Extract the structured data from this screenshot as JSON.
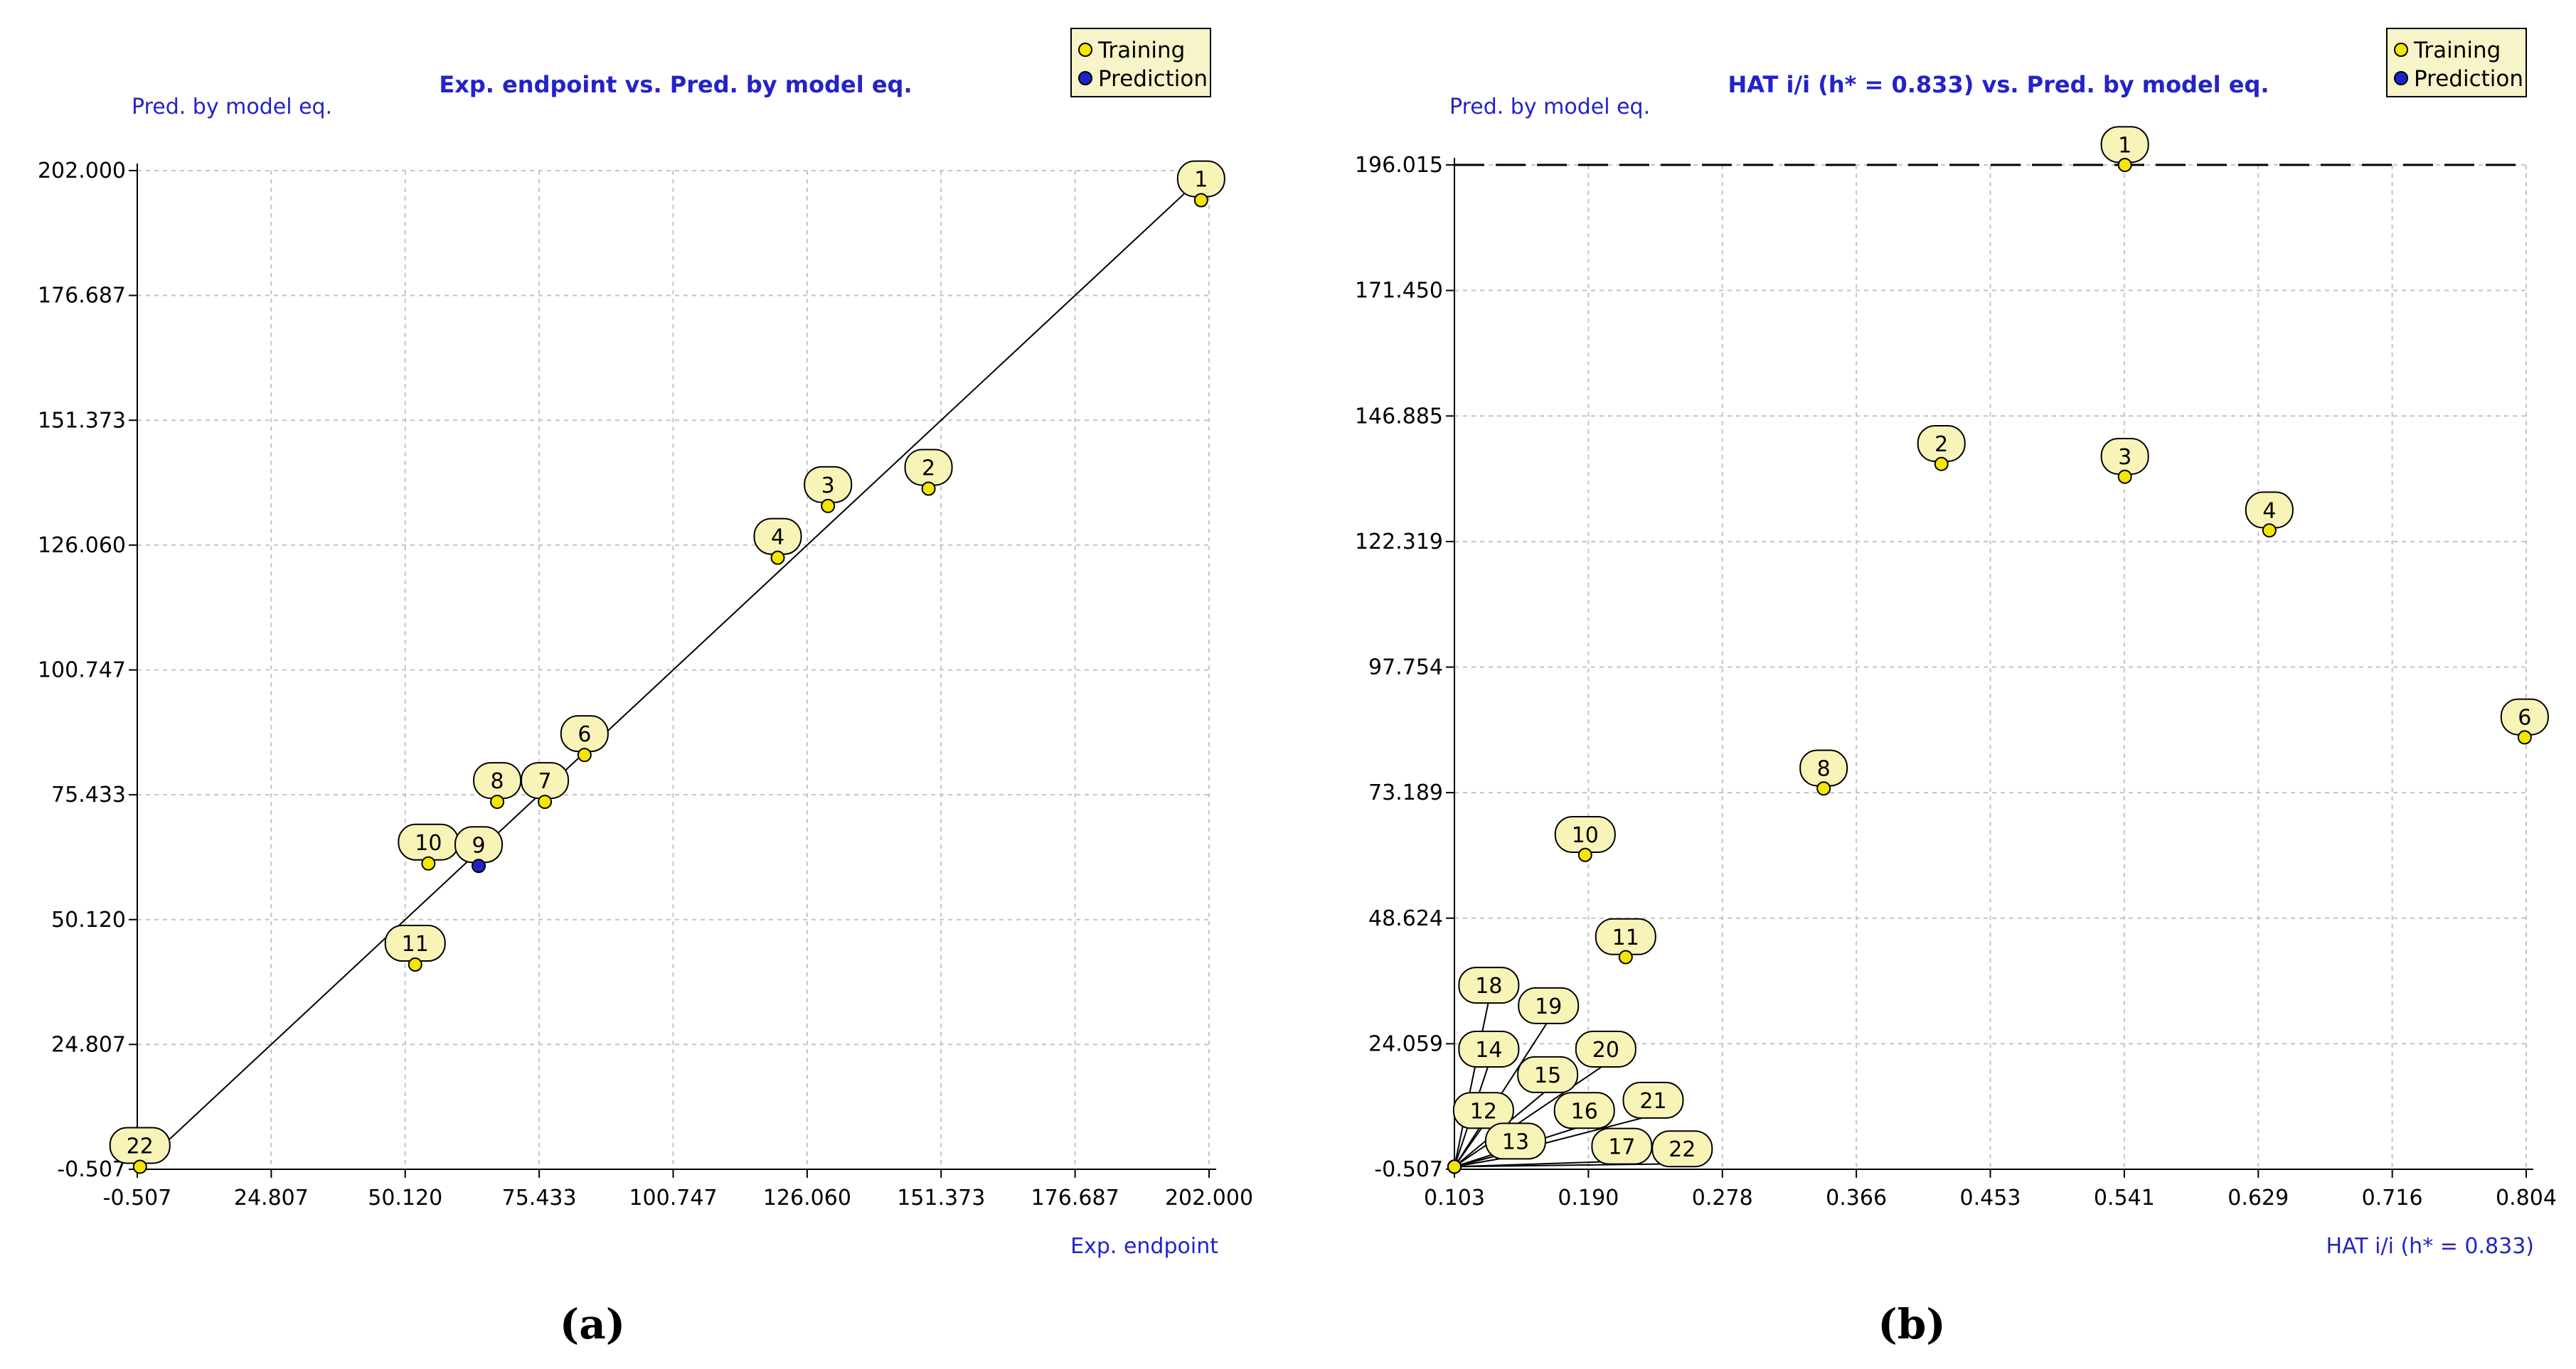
{
  "chart_data": [
    {
      "type": "scatter",
      "title": "Exp. endpoint vs. Pred. by model eq.",
      "xlabel": "Exp. endpoint",
      "ylabel": "Pred. by model eq.",
      "panel_label": "(a)",
      "xlim": [
        -0.507,
        202.0
      ],
      "ylim": [
        -0.507,
        202.0
      ],
      "x_ticks": [
        "-0.507",
        "24.807",
        "50.120",
        "75.433",
        "100.747",
        "126.060",
        "151.373",
        "176.687",
        "202.000"
      ],
      "y_ticks": [
        "-0.507",
        "24.807",
        "50.120",
        "75.433",
        "100.747",
        "126.060",
        "151.373",
        "176.687",
        "202.000"
      ],
      "grid": true,
      "legend": {
        "position": "top-right",
        "entries": [
          "Training",
          "Prediction"
        ]
      },
      "reference_line": {
        "type": "fit",
        "from": [
          -0.507,
          -0.507
        ],
        "to": [
          202.0,
          202.0
        ]
      },
      "series": [
        {
          "name": "Training",
          "color": "#f5e600",
          "points": [
            {
              "label": "1",
              "x": 200.5,
              "y": 196.0
            },
            {
              "label": "2",
              "x": 149.0,
              "y": 137.5
            },
            {
              "label": "3",
              "x": 130.0,
              "y": 134.0
            },
            {
              "label": "4",
              "x": 120.5,
              "y": 123.5
            },
            {
              "label": "6",
              "x": 84.0,
              "y": 83.5
            },
            {
              "label": "7",
              "x": 76.5,
              "y": 74.0
            },
            {
              "label": "8",
              "x": 67.5,
              "y": 74.0
            },
            {
              "label": "10",
              "x": 54.5,
              "y": 61.5
            },
            {
              "label": "11",
              "x": 52.0,
              "y": 41.0
            },
            {
              "label": "22",
              "x": 0.0,
              "y": 0.0
            }
          ]
        },
        {
          "name": "Prediction",
          "color": "#1c24c8",
          "points": [
            {
              "label": "9",
              "x": 64.0,
              "y": 61.0
            }
          ]
        }
      ]
    },
    {
      "type": "scatter",
      "title": "HAT i/i (h* = 0.833) vs. Pred. by model eq.",
      "xlabel": "HAT i/i (h* = 0.833)",
      "ylabel": "Pred. by model eq.",
      "panel_label": "(b)",
      "xlim": [
        0.103,
        0.804
      ],
      "ylim": [
        -0.507,
        196.015
      ],
      "x_ticks": [
        "0.103",
        "0.190",
        "0.278",
        "0.366",
        "0.453",
        "0.541",
        "0.629",
        "0.716",
        "0.804"
      ],
      "y_ticks": [
        "-0.507",
        "24.059",
        "48.624",
        "73.189",
        "97.754",
        "122.319",
        "146.885",
        "171.450",
        "196.015"
      ],
      "grid": true,
      "legend": {
        "position": "top-right",
        "entries": [
          "Training",
          "Prediction"
        ]
      },
      "reference_line": {
        "type": "dashed-horizontal",
        "y": 196.015
      },
      "series": [
        {
          "name": "Training",
          "color": "#f5e600",
          "points": [
            {
              "label": "1",
              "x": 0.5415,
              "y": 196.0,
              "lx": 0.5415,
              "ly": 200.0
            },
            {
              "label": "2",
              "x": 0.4215,
              "y": 137.5,
              "lx": 0.4215,
              "ly": 141.5
            },
            {
              "label": "3",
              "x": 0.5415,
              "y": 135.0,
              "lx": 0.5415,
              "ly": 139.0
            },
            {
              "label": "4",
              "x": 0.636,
              "y": 124.5,
              "lx": 0.636,
              "ly": 128.5
            },
            {
              "label": "6",
              "x": 0.803,
              "y": 84.0,
              "lx": 0.803,
              "ly": 88.0
            },
            {
              "label": "8",
              "x": 0.3445,
              "y": 74.0,
              "lx": 0.3445,
              "ly": 78.0
            },
            {
              "label": "10",
              "x": 0.1885,
              "y": 61.0,
              "lx": 0.1885,
              "ly": 65.0
            },
            {
              "label": "11",
              "x": 0.215,
              "y": 41.0,
              "lx": 0.215,
              "ly": 45.0
            },
            {
              "label": "18",
              "x": 0.103,
              "y": 0.0,
              "lx": 0.1255,
              "ly": 35.5
            },
            {
              "label": "19",
              "x": 0.103,
              "y": 0.0,
              "lx": 0.1645,
              "ly": 31.5
            },
            {
              "label": "14",
              "x": 0.103,
              "y": 0.0,
              "lx": 0.1255,
              "ly": 23.0
            },
            {
              "label": "20",
              "x": 0.103,
              "y": 0.0,
              "lx": 0.202,
              "ly": 23.0
            },
            {
              "label": "15",
              "x": 0.103,
              "y": 0.0,
              "lx": 0.164,
              "ly": 18.0
            },
            {
              "label": "12",
              "x": 0.103,
              "y": 0.0,
              "lx": 0.122,
              "ly": 11.0
            },
            {
              "label": "16",
              "x": 0.103,
              "y": 0.0,
              "lx": 0.188,
              "ly": 11.0
            },
            {
              "label": "21",
              "x": 0.103,
              "y": 0.0,
              "lx": 0.233,
              "ly": 13.0
            },
            {
              "label": "13",
              "x": 0.103,
              "y": 0.0,
              "lx": 0.143,
              "ly": 5.0
            },
            {
              "label": "17",
              "x": 0.103,
              "y": 0.0,
              "lx": 0.2125,
              "ly": 4.0
            },
            {
              "label": "22",
              "x": 0.103,
              "y": 0.0,
              "lx": 0.252,
              "ly": 3.5
            }
          ]
        },
        {
          "name": "Prediction",
          "color": "#1c24c8",
          "points": []
        }
      ]
    }
  ]
}
